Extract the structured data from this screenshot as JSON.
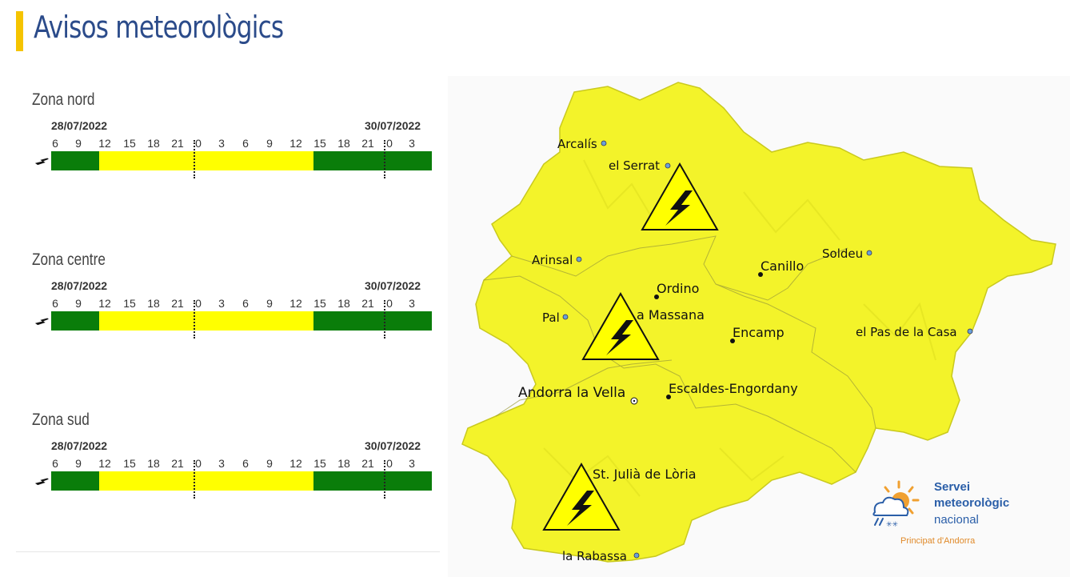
{
  "page": {
    "title": "Avisos meteorològics"
  },
  "colors": {
    "title_accent": "#f5c400",
    "ok": "#0a7d0a",
    "warning": "#ffff00",
    "map_fill": "#f3f32a"
  },
  "timeline": {
    "start_date": "28/07/2022",
    "end_date": "30/07/2022",
    "hours": [
      "6",
      "9",
      "12",
      "15",
      "18",
      "21",
      "0",
      "3",
      "6",
      "9",
      "12",
      "15",
      "18",
      "21",
      "0",
      "3"
    ]
  },
  "zones": [
    {
      "name": "Zona nord",
      "icon": "lightning-icon",
      "segments": [
        "ok",
        "ok",
        "warning",
        "warning",
        "warning",
        "warning",
        "warning",
        "warning",
        "warning",
        "warning",
        "warning",
        "ok",
        "ok",
        "ok",
        "ok",
        "ok"
      ]
    },
    {
      "name": "Zona centre",
      "icon": "lightning-icon",
      "segments": [
        "ok",
        "ok",
        "warning",
        "warning",
        "warning",
        "warning",
        "warning",
        "warning",
        "warning",
        "warning",
        "warning",
        "ok",
        "ok",
        "ok",
        "ok",
        "ok"
      ]
    },
    {
      "name": "Zona sud",
      "icon": "lightning-icon",
      "segments": [
        "ok",
        "ok",
        "warning",
        "warning",
        "warning",
        "warning",
        "warning",
        "warning",
        "warning",
        "warning",
        "warning",
        "ok",
        "ok",
        "ok",
        "ok",
        "ok"
      ]
    }
  ],
  "map": {
    "places": {
      "arcalis": "Arcalís",
      "el_serrat": "el Serrat",
      "arinsal": "Arinsal",
      "soldeu": "Soldeu",
      "canillo": "Canillo",
      "ordino": "Ordino",
      "la_massana": "a Massana",
      "pal": "Pal",
      "encamp": "Encamp",
      "el_pas_de_la_casa": "el Pas de la Casa",
      "andorra_la_vella": "Andorra la Vella",
      "escaldes": "Escaldes-Engordany",
      "st_julia": "St. Julià de Lòria",
      "la_rabassa": "la Rabassa"
    },
    "warning_icons": [
      "lightning-warning-icon",
      "lightning-warning-icon",
      "lightning-warning-icon"
    ]
  },
  "logo": {
    "line1": "Servei",
    "line2": "meteorològic",
    "line3": "nacional",
    "subtitle": "Principat d'Andorra",
    "icon": "sun-cloud-icon"
  }
}
